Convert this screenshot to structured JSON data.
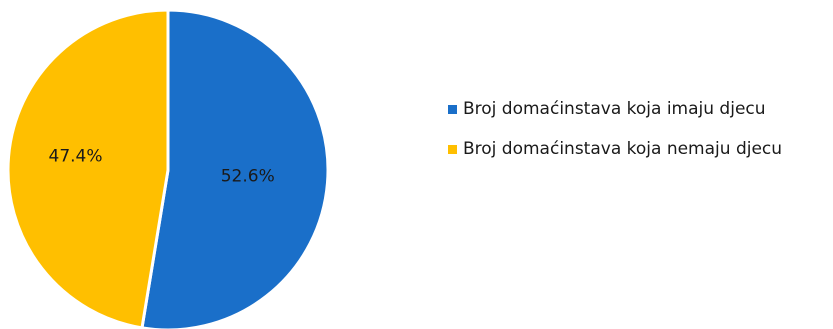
{
  "chart_data": {
    "type": "pie",
    "title": "",
    "legend_position": "right",
    "start_angle_degrees": 0,
    "direction": "clockwise",
    "slices": [
      {
        "label": "Broj domaćinstava koja imaju djecu",
        "value": 52.6,
        "value_label": "52.6%",
        "color": "#1a6fc9"
      },
      {
        "label": "Broj domaćinstava koja nemaju djecu",
        "value": 47.4,
        "value_label": "47.4%",
        "color": "#ffbf00"
      }
    ]
  }
}
